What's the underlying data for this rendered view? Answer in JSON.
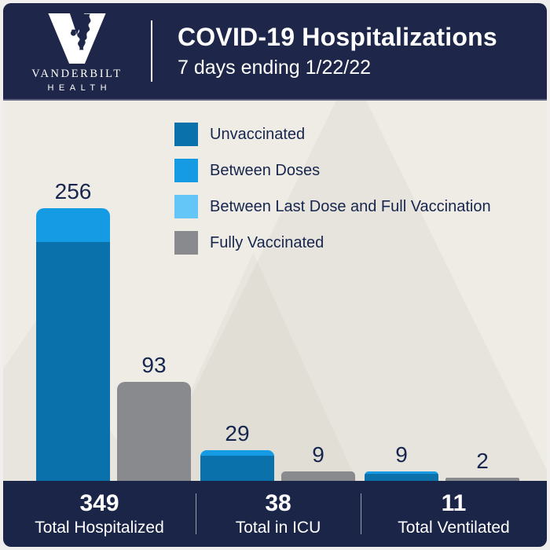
{
  "header": {
    "brand": {
      "line1": "VANDERBILT",
      "line2": "HEALTH"
    },
    "title": "COVID-19 Hospitalizations",
    "subtitle": "7 days ending 1/22/22"
  },
  "colors": {
    "navy_header": "#1e2749",
    "navy_footer": "#1b2548",
    "navy_text": "#17264e",
    "background_beige": "#efece6",
    "unvaccinated_blue": "#0b71aa",
    "between_doses_blue": "#149be4",
    "between_last_dose_blue": "#63c6f6",
    "fully_vaccinated_gray": "#898a8d"
  },
  "legend": [
    {
      "label": "Unvaccinated",
      "color": "#0b71aa"
    },
    {
      "label": "Between Doses",
      "color": "#149be4"
    },
    {
      "label": "Between Last Dose and Full Vaccination",
      "color": "#63c6f6"
    },
    {
      "label": "Fully Vaccinated",
      "color": "#898a8d"
    }
  ],
  "chart_data": {
    "type": "bar",
    "title": "COVID-19 Hospitalizations",
    "subtitle": "7 days ending 1/22/22",
    "grid": false,
    "legend_position": "top-right",
    "ylim": [
      0,
      280
    ],
    "groups": [
      "Total Hospitalized",
      "Total in ICU",
      "Total Ventilated"
    ],
    "bars": [
      {
        "group": "Total Hospitalized",
        "label": "256",
        "value": 256,
        "segments": [
          {
            "name": "Unvaccinated",
            "value": 224,
            "color": "#0b71aa"
          },
          {
            "name": "Between Doses",
            "value": 32,
            "color": "#149be4"
          }
        ]
      },
      {
        "group": "Total Hospitalized",
        "label": "93",
        "value": 93,
        "segments": [
          {
            "name": "Fully Vaccinated",
            "value": 93,
            "color": "#898a8d"
          }
        ]
      },
      {
        "group": "Total in ICU",
        "label": "29",
        "value": 29,
        "segments": [
          {
            "name": "Unvaccinated",
            "value": 24,
            "color": "#0b71aa"
          },
          {
            "name": "Between Doses",
            "value": 5,
            "color": "#149be4"
          }
        ]
      },
      {
        "group": "Total in ICU",
        "label": "9",
        "value": 9,
        "segments": [
          {
            "name": "Fully Vaccinated",
            "value": 9,
            "color": "#898a8d"
          }
        ]
      },
      {
        "group": "Total Ventilated",
        "label": "9",
        "value": 9,
        "segments": [
          {
            "name": "Unvaccinated",
            "value": 7,
            "color": "#0b71aa"
          },
          {
            "name": "Between Doses",
            "value": 2,
            "color": "#149be4"
          }
        ]
      },
      {
        "group": "Total Ventilated",
        "label": "2",
        "value": 2,
        "segments": [
          {
            "name": "Fully Vaccinated",
            "value": 2,
            "color": "#898a8d"
          }
        ]
      }
    ]
  },
  "footer": {
    "stats": [
      {
        "value": "349",
        "label": "Total Hospitalized"
      },
      {
        "value": "38",
        "label": "Total in ICU"
      },
      {
        "value": "11",
        "label": "Total Ventilated"
      }
    ]
  }
}
